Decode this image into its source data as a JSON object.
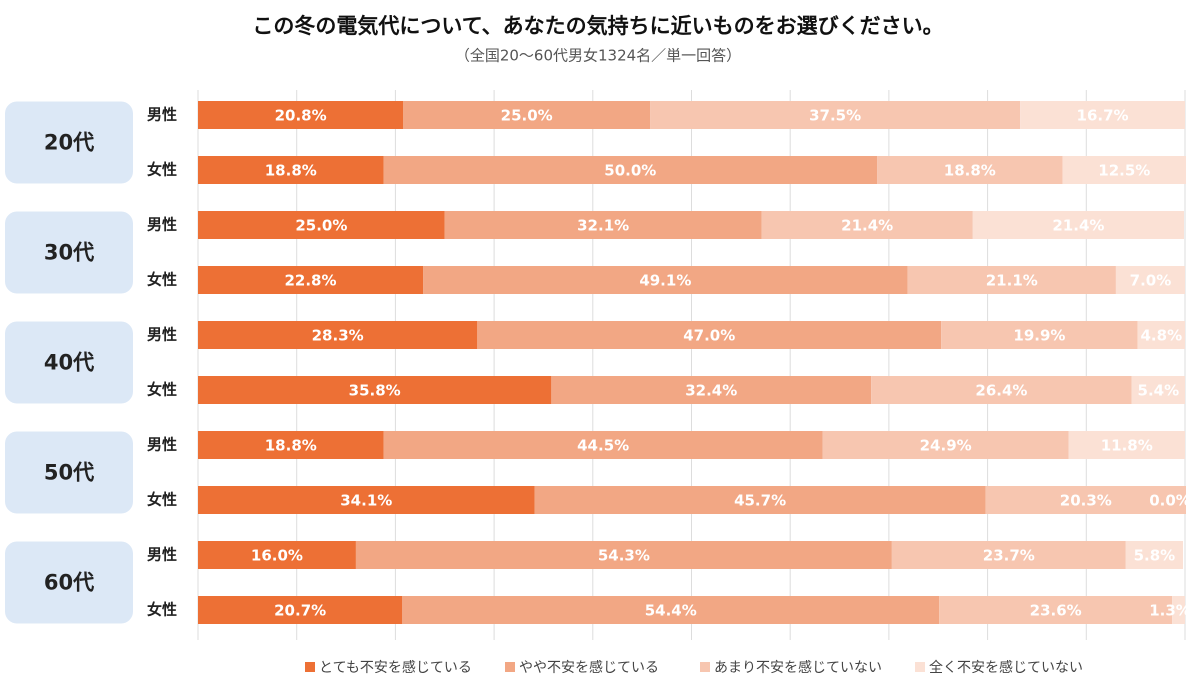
{
  "chart_data": {
    "type": "stacked-bar",
    "title": "この冬の電気代について、あなたの気持ちに近いものをお選びください。",
    "subtitle": "（全国20～60代男女1324名／単一回答）",
    "groups": [
      "20代",
      "30代",
      "40代",
      "50代",
      "60代"
    ],
    "categories": [
      "男性",
      "女性",
      "男性",
      "女性",
      "男性",
      "女性",
      "男性",
      "女性",
      "男性",
      "女性"
    ],
    "xlim": [
      0,
      100
    ],
    "xticks": [
      0,
      10,
      20,
      30,
      40,
      50,
      60,
      70,
      80,
      90,
      100
    ],
    "grid": true,
    "legend": "bottom",
    "series": [
      {
        "name": "とても不安を感じている",
        "color": "#ED7035",
        "values": [
          20.8,
          18.8,
          25.0,
          22.8,
          28.3,
          35.8,
          18.8,
          34.1,
          16.0,
          20.7
        ],
        "value_labels": [
          "20.8%",
          "18.8%",
          "25.0%",
          "22.8%",
          "28.3%",
          "35.8%",
          "18.8%",
          "34.1%",
          "16.0%",
          "20.7%"
        ]
      },
      {
        "name": "やや不安を感じている",
        "color": "#F2A784",
        "values": [
          25.0,
          50.0,
          32.1,
          49.1,
          47.0,
          32.4,
          44.5,
          45.7,
          54.3,
          54.4
        ],
        "value_labels": [
          "25.0%",
          "50.0%",
          "32.1%",
          "49.1%",
          "47.0%",
          "32.4%",
          "44.5%",
          "45.7%",
          "54.3%",
          "54.4%"
        ]
      },
      {
        "name": "あまり不安を感じていない",
        "color": "#F7C6B0",
        "values": [
          37.5,
          18.8,
          21.4,
          21.1,
          19.9,
          26.4,
          24.9,
          20.3,
          23.7,
          23.6
        ],
        "value_labels": [
          "37.5%",
          "18.8%",
          "21.4%",
          "21.1%",
          "19.9%",
          "26.4%",
          "24.9%",
          "20.3%",
          "23.7%",
          "23.6%"
        ]
      },
      {
        "name": "全く不安を感じていない",
        "color": "#FBE1D5",
        "values": [
          16.7,
          12.5,
          21.4,
          7.0,
          4.8,
          5.4,
          11.8,
          0.0,
          5.8,
          1.3
        ],
        "value_labels": [
          "16.7%",
          "12.5%",
          "21.4%",
          "7.0%",
          "4.8%",
          "5.4%",
          "11.8%",
          "0.0%",
          "5.8%",
          "1.3%"
        ]
      }
    ]
  }
}
